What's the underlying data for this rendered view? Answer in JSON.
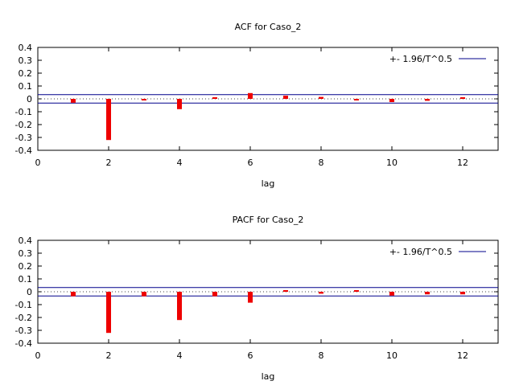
{
  "chart_data": [
    {
      "type": "bar",
      "title": "ACF for Caso_2",
      "xlabel": "lag",
      "ylabel": "",
      "xlim": [
        0,
        13
      ],
      "ylim": [
        -0.4,
        0.4
      ],
      "xticks": [
        "0",
        "2",
        "4",
        "6",
        "8",
        "10",
        "12"
      ],
      "yticks": [
        "0.4",
        "0.3",
        "0.2",
        "0.1",
        "0",
        "-0.1",
        "-0.2",
        "-0.3",
        "-0.4"
      ],
      "legend_label": "+- 1.96/T^0.5",
      "legend_position": "top-right",
      "band": 0.033,
      "zero_line": "dotted",
      "x": [
        1,
        2,
        3,
        4,
        5,
        6,
        7,
        8,
        9,
        10,
        11,
        12
      ],
      "values": [
        -0.03,
        -0.32,
        -0.01,
        -0.08,
        0.005,
        0.045,
        0.025,
        0.015,
        -0.01,
        -0.025,
        -0.015,
        0.005
      ]
    },
    {
      "type": "bar",
      "title": "PACF for Caso_2",
      "xlabel": "lag",
      "ylabel": "",
      "xlim": [
        0,
        13
      ],
      "ylim": [
        -0.4,
        0.4
      ],
      "xticks": [
        "0",
        "2",
        "4",
        "6",
        "8",
        "10",
        "12"
      ],
      "yticks": [
        "0.4",
        "0.3",
        "0.2",
        "0.1",
        "0",
        "-0.1",
        "-0.2",
        "-0.3",
        "-0.4"
      ],
      "legend_label": "+- 1.96/T^0.5",
      "legend_position": "top-right",
      "band": 0.033,
      "zero_line": "dotted",
      "x": [
        1,
        2,
        3,
        4,
        5,
        6,
        7,
        8,
        9,
        10,
        11,
        12
      ],
      "values": [
        -0.035,
        -0.32,
        -0.035,
        -0.22,
        -0.035,
        -0.085,
        0.01,
        -0.015,
        0.005,
        -0.03,
        -0.02,
        -0.02
      ]
    }
  ],
  "colors": {
    "bar": "#ee0000",
    "band_line": "#00008b",
    "zero_line": "#444444",
    "frame": "#000000"
  }
}
